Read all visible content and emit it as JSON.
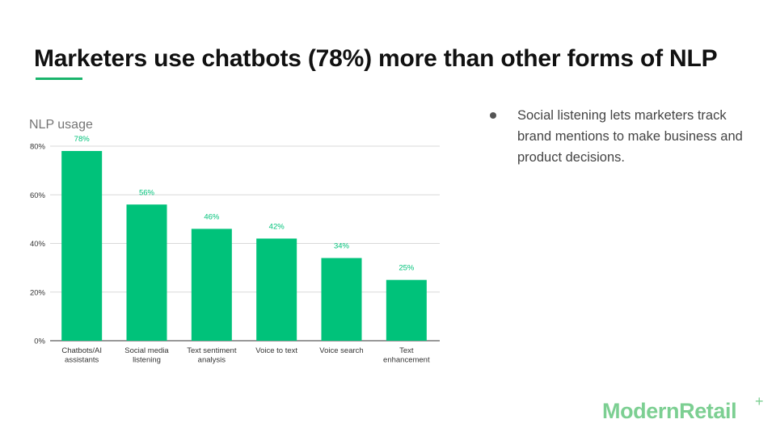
{
  "slide": {
    "title": "Marketers use chatbots (78%) more than other forms of NLP",
    "bullets": [
      "Social listening lets marketers track brand mentions to make business and product decisions."
    ],
    "logo_text": "ModernRetail",
    "logo_mark": "+"
  },
  "colors": {
    "bar": "#00c27a",
    "label": "#00c27a",
    "accent": "#19b46b",
    "grid": "#d9d9d9",
    "logo": "#7ccf92"
  },
  "chart_data": {
    "type": "bar",
    "title": "NLP usage",
    "categories": [
      [
        "Chatbots/AI",
        "assistants"
      ],
      [
        "Social media",
        "listening"
      ],
      [
        "Text sentiment",
        "analysis"
      ],
      [
        "Voice to text"
      ],
      [
        "Voice search"
      ],
      [
        "Text",
        "enhancement"
      ]
    ],
    "values": [
      78,
      56,
      46,
      42,
      34,
      25
    ],
    "data_labels": [
      "78%",
      "56%",
      "46%",
      "42%",
      "34%",
      "25%"
    ],
    "yticks": [
      0,
      20,
      40,
      60,
      80
    ],
    "ytick_labels": [
      "0%",
      "20%",
      "40%",
      "60%",
      "80%"
    ],
    "ylim": [
      0,
      80
    ],
    "grid": true,
    "legend": "none"
  }
}
